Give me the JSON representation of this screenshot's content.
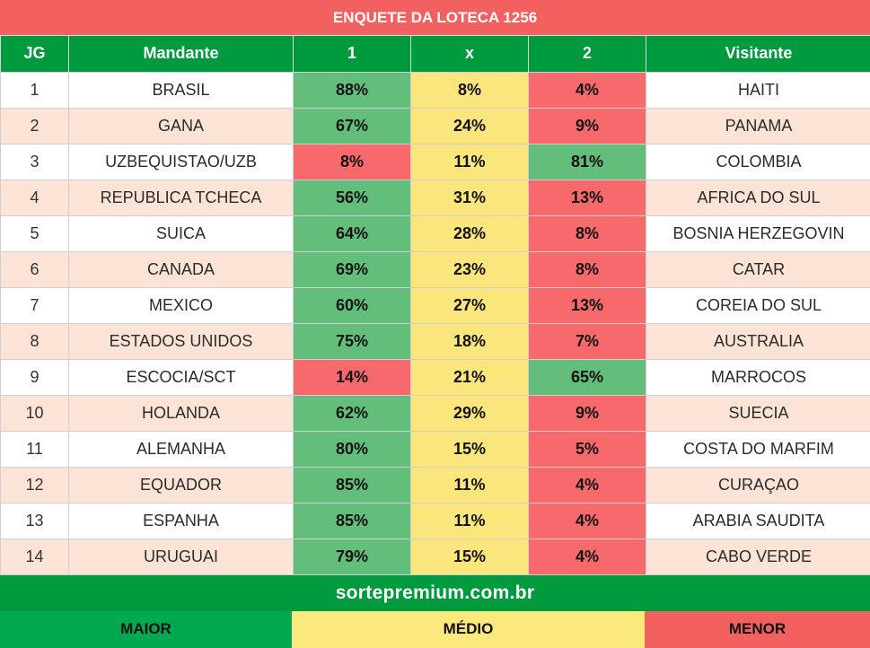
{
  "title": "ENQUETE DA LOTECA 1256",
  "headers": {
    "jg": "JG",
    "mandante": "Mandante",
    "one": "1",
    "x": "x",
    "two": "2",
    "visitante": "Visitante"
  },
  "rows": [
    {
      "jg": "1",
      "home": "BRASIL",
      "p1": "88%",
      "px": "8%",
      "p2": "4%",
      "away": "HAITI",
      "c1": "hi",
      "c2": "lo"
    },
    {
      "jg": "2",
      "home": "GANA",
      "p1": "67%",
      "px": "24%",
      "p2": "9%",
      "away": "PANAMA",
      "c1": "hi",
      "c2": "lo"
    },
    {
      "jg": "3",
      "home": "UZBEQUISTAO/UZB",
      "p1": "8%",
      "px": "11%",
      "p2": "81%",
      "away": "COLOMBIA",
      "c1": "lo",
      "c2": "hi"
    },
    {
      "jg": "4",
      "home": "REPUBLICA TCHECA",
      "p1": "56%",
      "px": "31%",
      "p2": "13%",
      "away": "AFRICA DO SUL",
      "c1": "hi",
      "c2": "lo"
    },
    {
      "jg": "5",
      "home": "SUICA",
      "p1": "64%",
      "px": "28%",
      "p2": "8%",
      "away": "BOSNIA HERZEGOVIN",
      "c1": "hi",
      "c2": "lo"
    },
    {
      "jg": "6",
      "home": "CANADA",
      "p1": "69%",
      "px": "23%",
      "p2": "8%",
      "away": "CATAR",
      "c1": "hi",
      "c2": "lo"
    },
    {
      "jg": "7",
      "home": "MEXICO",
      "p1": "60%",
      "px": "27%",
      "p2": "13%",
      "away": "COREIA DO SUL",
      "c1": "hi",
      "c2": "lo"
    },
    {
      "jg": "8",
      "home": "ESTADOS UNIDOS",
      "p1": "75%",
      "px": "18%",
      "p2": "7%",
      "away": "AUSTRALIA",
      "c1": "hi",
      "c2": "lo"
    },
    {
      "jg": "9",
      "home": "ESCOCIA/SCT",
      "p1": "14%",
      "px": "21%",
      "p2": "65%",
      "away": "MARROCOS",
      "c1": "lo",
      "c2": "hi"
    },
    {
      "jg": "10",
      "home": "HOLANDA",
      "p1": "62%",
      "px": "29%",
      "p2": "9%",
      "away": "SUECIA",
      "c1": "hi",
      "c2": "lo"
    },
    {
      "jg": "11",
      "home": "ALEMANHA",
      "p1": "80%",
      "px": "15%",
      "p2": "5%",
      "away": "COSTA DO MARFIM",
      "c1": "hi",
      "c2": "lo"
    },
    {
      "jg": "12",
      "home": "EQUADOR",
      "p1": "85%",
      "px": "11%",
      "p2": "4%",
      "away": "CURAÇAO",
      "c1": "hi",
      "c2": "lo"
    },
    {
      "jg": "13",
      "home": "ESPANHA",
      "p1": "85%",
      "px": "11%",
      "p2": "4%",
      "away": "ARABIA SAUDITA",
      "c1": "hi",
      "c2": "lo"
    },
    {
      "jg": "14",
      "home": "URUGUAI",
      "p1": "79%",
      "px": "15%",
      "p2": "4%",
      "away": "CABO VERDE",
      "c1": "hi",
      "c2": "lo"
    }
  ],
  "footer": "sortepremium.com.br",
  "legend": {
    "maior": "MAIOR",
    "medio": "MÉDIO",
    "menor": "MENOR"
  },
  "colors": {
    "maior": "#63be7b",
    "medio": "#fbe57d",
    "menor": "#f8696b",
    "header_green": "#009a3e",
    "title_red": "#f26060"
  }
}
